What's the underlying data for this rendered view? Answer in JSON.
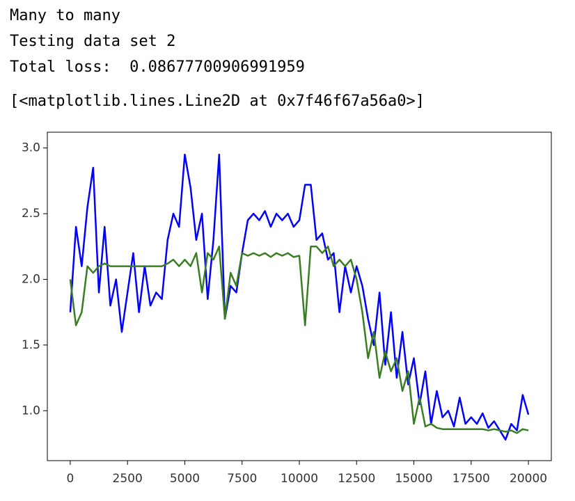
{
  "output_lines": [
    "Many to many",
    "Testing data set 2",
    "Total loss:  0.08677700906991959"
  ],
  "repr": "[<matplotlib.lines.Line2D at 0x7f46f67a56a0>]",
  "chart_data": {
    "type": "line",
    "x": [
      0,
      250,
      500,
      750,
      1000,
      1250,
      1500,
      1750,
      2000,
      2250,
      2500,
      2750,
      3000,
      3250,
      3500,
      3750,
      4000,
      4250,
      4500,
      4750,
      5000,
      5250,
      5500,
      5750,
      6000,
      6250,
      6500,
      6750,
      7000,
      7250,
      7500,
      7750,
      8000,
      8250,
      8500,
      8750,
      9000,
      9250,
      9500,
      9750,
      10000,
      10250,
      10500,
      10750,
      11000,
      11250,
      11500,
      11750,
      12000,
      12250,
      12500,
      12750,
      13000,
      13250,
      13500,
      13750,
      14000,
      14250,
      14500,
      14750,
      15000,
      15250,
      15500,
      15750,
      16000,
      16250,
      16500,
      16750,
      17000,
      17250,
      17500,
      17750,
      18000,
      18250,
      18500,
      18750,
      19000,
      19250,
      19500,
      19750,
      20000
    ],
    "series": [
      {
        "color": "#0000ff",
        "values": [
          1.75,
          2.4,
          2.1,
          2.55,
          2.85,
          1.9,
          2.4,
          1.8,
          2.0,
          1.6,
          1.9,
          2.2,
          1.75,
          2.1,
          1.8,
          1.9,
          1.85,
          2.3,
          2.5,
          2.4,
          2.95,
          2.7,
          2.3,
          2.5,
          1.85,
          2.3,
          2.95,
          1.7,
          1.95,
          1.9,
          2.2,
          2.45,
          2.5,
          2.45,
          2.52,
          2.4,
          2.5,
          2.45,
          2.5,
          2.4,
          2.45,
          2.72,
          2.72,
          2.3,
          2.35,
          2.15,
          2.2,
          1.75,
          2.1,
          1.9,
          2.1,
          1.95,
          1.7,
          1.5,
          1.9,
          1.35,
          1.75,
          1.25,
          1.6,
          1.2,
          1.4,
          1.05,
          1.3,
          0.9,
          1.15,
          0.95,
          1.0,
          0.88,
          1.1,
          0.9,
          0.95,
          0.9,
          0.98,
          0.87,
          0.92,
          0.85,
          0.78,
          0.9,
          0.85,
          1.12,
          0.97
        ]
      },
      {
        "color": "#3a7d22",
        "values": [
          2.0,
          1.65,
          1.75,
          2.1,
          2.05,
          2.1,
          2.12,
          2.1,
          2.1,
          2.1,
          2.1,
          2.1,
          2.1,
          2.1,
          2.1,
          2.1,
          2.1,
          2.12,
          2.15,
          2.1,
          2.15,
          2.1,
          2.2,
          1.9,
          2.2,
          2.15,
          2.25,
          1.7,
          2.05,
          1.95,
          2.2,
          2.18,
          2.2,
          2.18,
          2.2,
          2.17,
          2.2,
          2.18,
          2.2,
          2.17,
          2.18,
          1.65,
          2.25,
          2.25,
          2.2,
          2.25,
          2.1,
          2.15,
          2.1,
          2.15,
          2.0,
          1.75,
          1.4,
          1.6,
          1.25,
          1.45,
          1.3,
          1.4,
          1.15,
          1.3,
          0.9,
          1.1,
          0.88,
          0.9,
          0.87,
          0.86,
          0.86,
          0.86,
          0.86,
          0.86,
          0.86,
          0.86,
          0.86,
          0.85,
          0.86,
          0.85,
          0.84,
          0.85,
          0.83,
          0.86,
          0.85
        ]
      }
    ],
    "xlim": [
      -1000,
      21000
    ],
    "ylim": [
      0.62,
      3.12
    ],
    "xticks": [
      0,
      2500,
      5000,
      7500,
      10000,
      12500,
      15000,
      17500,
      20000
    ],
    "yticks": [
      {
        "value": 1,
        "label": "1.0"
      },
      1.5,
      {
        "value": 2,
        "label": "2.0"
      },
      2.5,
      {
        "value": 3,
        "label": "3.0"
      }
    ]
  }
}
